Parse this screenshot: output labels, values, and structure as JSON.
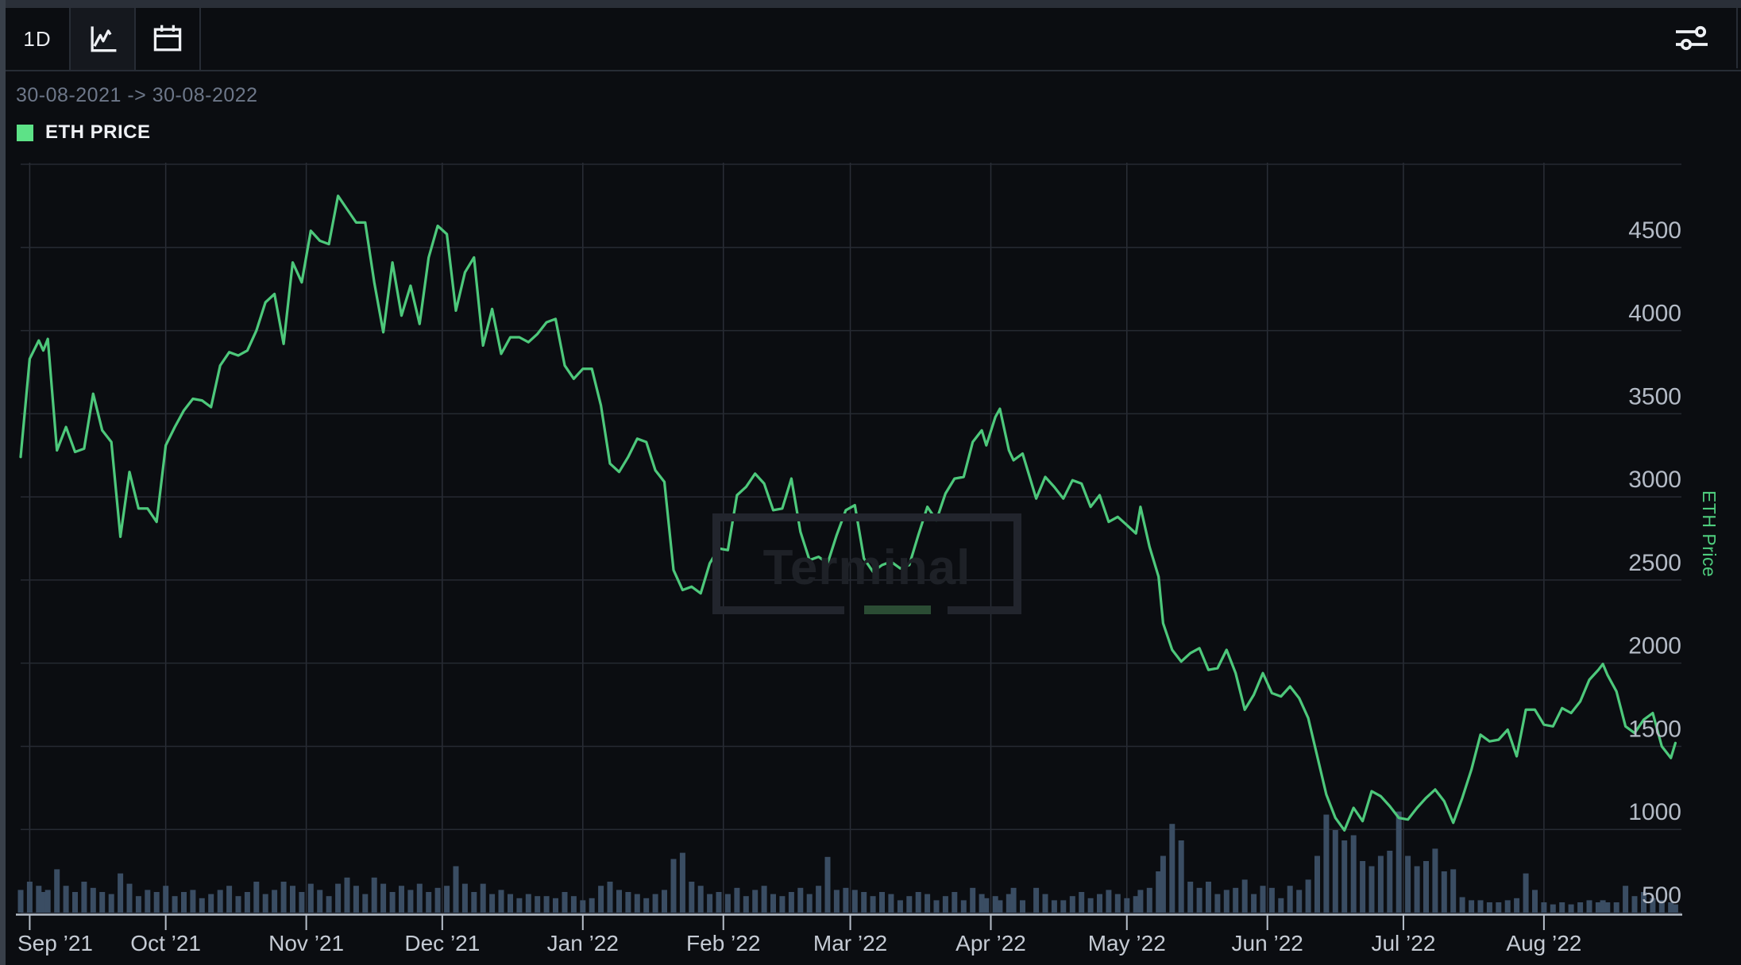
{
  "toolbar": {
    "timeframe_label": "1D",
    "chart_type_icon": "line-chart-icon",
    "calendar_icon": "calendar-icon",
    "filters_icon": "sliders-icon"
  },
  "header": {
    "date_range": "30-08-2021 -> 30-08-2022"
  },
  "legend": {
    "series_label": "ETH PRICE",
    "swatch_color": "#5de287"
  },
  "watermark": {
    "text": "Terminal"
  },
  "chart_data": {
    "type": "line",
    "title": "ETH PRICE",
    "ylabel": "ETH Price",
    "x_range": [
      "2021-08-30",
      "2022-08-30"
    ],
    "ylim": [
      500,
      5000
    ],
    "grid": true,
    "legend_position": "top-left",
    "y_gridlines": [
      500,
      1000,
      1500,
      2000,
      2500,
      3000,
      3500,
      4000,
      4500,
      5000
    ],
    "y_labelled_max": 4500,
    "x_ticks": [
      {
        "date": "2021-09-01",
        "label": "Sep ’21"
      },
      {
        "date": "2021-10-01",
        "label": "Oct ’21"
      },
      {
        "date": "2021-11-01",
        "label": "Nov ’21"
      },
      {
        "date": "2021-12-01",
        "label": "Dec ’21"
      },
      {
        "date": "2022-01-01",
        "label": "Jan ’22"
      },
      {
        "date": "2022-02-01",
        "label": "Feb ’22"
      },
      {
        "date": "2022-03-01",
        "label": "Mar ’22"
      },
      {
        "date": "2022-04-01",
        "label": "Apr ’22"
      },
      {
        "date": "2022-05-01",
        "label": "May ’22"
      },
      {
        "date": "2022-06-01",
        "label": "Jun ’22"
      },
      {
        "date": "2022-07-01",
        "label": "Jul ’22"
      },
      {
        "date": "2022-08-01",
        "label": "Aug ’22"
      }
    ],
    "style": {
      "line_color": "#4dc87b",
      "volume_color": "#3a4d63",
      "grid_color": "#262a32",
      "grid_color_vertical": "#2a2e37",
      "axis_color": "#b6bec9",
      "x_label_color": "#c5cbd4",
      "y_label_color": "#b4bbc6",
      "background": "#0b0d11"
    },
    "columns": [
      "date",
      "eth_price_usd",
      "volume_relative_0_100"
    ],
    "points": [
      [
        "2021-08-30",
        3240,
        22
      ],
      [
        "2021-09-01",
        3830,
        30
      ],
      [
        "2021-09-03",
        3940,
        26
      ],
      [
        "2021-09-04",
        3880,
        20
      ],
      [
        "2021-09-05",
        3950,
        22
      ],
      [
        "2021-09-07",
        3280,
        42
      ],
      [
        "2021-09-09",
        3420,
        26
      ],
      [
        "2021-09-11",
        3270,
        20
      ],
      [
        "2021-09-13",
        3290,
        30
      ],
      [
        "2021-09-15",
        3620,
        24
      ],
      [
        "2021-09-17",
        3400,
        20
      ],
      [
        "2021-09-19",
        3330,
        18
      ],
      [
        "2021-09-21",
        2760,
        38
      ],
      [
        "2021-09-23",
        3150,
        28
      ],
      [
        "2021-09-25",
        2930,
        16
      ],
      [
        "2021-09-27",
        2930,
        22
      ],
      [
        "2021-09-29",
        2850,
        20
      ],
      [
        "2021-10-01",
        3310,
        26
      ],
      [
        "2021-10-03",
        3420,
        16
      ],
      [
        "2021-10-05",
        3520,
        20
      ],
      [
        "2021-10-07",
        3590,
        22
      ],
      [
        "2021-10-09",
        3580,
        14
      ],
      [
        "2021-10-11",
        3540,
        18
      ],
      [
        "2021-10-13",
        3790,
        22
      ],
      [
        "2021-10-15",
        3870,
        26
      ],
      [
        "2021-10-17",
        3850,
        16
      ],
      [
        "2021-10-19",
        3880,
        20
      ],
      [
        "2021-10-21",
        4000,
        30
      ],
      [
        "2021-10-23",
        4170,
        18
      ],
      [
        "2021-10-25",
        4220,
        22
      ],
      [
        "2021-10-27",
        3920,
        30
      ],
      [
        "2021-10-29",
        4410,
        26
      ],
      [
        "2021-10-31",
        4290,
        20
      ],
      [
        "2021-11-02",
        4600,
        28
      ],
      [
        "2021-11-04",
        4540,
        22
      ],
      [
        "2021-11-06",
        4520,
        16
      ],
      [
        "2021-11-08",
        4810,
        28
      ],
      [
        "2021-11-10",
        4730,
        34
      ],
      [
        "2021-11-12",
        4650,
        26
      ],
      [
        "2021-11-14",
        4650,
        18
      ],
      [
        "2021-11-16",
        4290,
        34
      ],
      [
        "2021-11-18",
        3990,
        28
      ],
      [
        "2021-11-20",
        4410,
        20
      ],
      [
        "2021-11-22",
        4090,
        26
      ],
      [
        "2021-11-24",
        4270,
        22
      ],
      [
        "2021-11-26",
        4040,
        28
      ],
      [
        "2021-11-28",
        4440,
        20
      ],
      [
        "2021-11-30",
        4630,
        24
      ],
      [
        "2021-12-02",
        4580,
        26
      ],
      [
        "2021-12-04",
        4120,
        45
      ],
      [
        "2021-12-06",
        4350,
        28
      ],
      [
        "2021-12-08",
        4440,
        20
      ],
      [
        "2021-12-10",
        3910,
        28
      ],
      [
        "2021-12-12",
        4130,
        18
      ],
      [
        "2021-12-14",
        3860,
        22
      ],
      [
        "2021-12-16",
        3960,
        18
      ],
      [
        "2021-12-18",
        3960,
        14
      ],
      [
        "2021-12-20",
        3930,
        18
      ],
      [
        "2021-12-22",
        3980,
        16
      ],
      [
        "2021-12-24",
        4050,
        16
      ],
      [
        "2021-12-26",
        4070,
        14
      ],
      [
        "2021-12-28",
        3790,
        20
      ],
      [
        "2021-12-30",
        3710,
        16
      ],
      [
        "2022-01-01",
        3770,
        12
      ],
      [
        "2022-01-03",
        3770,
        14
      ],
      [
        "2022-01-05",
        3550,
        26
      ],
      [
        "2022-01-07",
        3200,
        30
      ],
      [
        "2022-01-09",
        3150,
        22
      ],
      [
        "2022-01-11",
        3240,
        20
      ],
      [
        "2022-01-13",
        3350,
        18
      ],
      [
        "2022-01-15",
        3330,
        14
      ],
      [
        "2022-01-17",
        3160,
        18
      ],
      [
        "2022-01-19",
        3090,
        22
      ],
      [
        "2022-01-21",
        2560,
        52
      ],
      [
        "2022-01-23",
        2440,
        58
      ],
      [
        "2022-01-25",
        2460,
        30
      ],
      [
        "2022-01-27",
        2420,
        26
      ],
      [
        "2022-01-29",
        2600,
        18
      ],
      [
        "2022-01-31",
        2690,
        20
      ],
      [
        "2022-02-02",
        2680,
        18
      ],
      [
        "2022-02-04",
        3010,
        24
      ],
      [
        "2022-02-06",
        3060,
        16
      ],
      [
        "2022-02-08",
        3140,
        22
      ],
      [
        "2022-02-10",
        3080,
        26
      ],
      [
        "2022-02-12",
        2920,
        18
      ],
      [
        "2022-02-14",
        2930,
        16
      ],
      [
        "2022-02-16",
        3110,
        20
      ],
      [
        "2022-02-18",
        2790,
        24
      ],
      [
        "2022-02-20",
        2620,
        18
      ],
      [
        "2022-02-22",
        2640,
        26
      ],
      [
        "2022-02-24",
        2600,
        54
      ],
      [
        "2022-02-26",
        2770,
        22
      ],
      [
        "2022-02-28",
        2920,
        24
      ],
      [
        "2022-03-02",
        2950,
        22
      ],
      [
        "2022-03-04",
        2630,
        20
      ],
      [
        "2022-03-06",
        2550,
        16
      ],
      [
        "2022-03-08",
        2590,
        20
      ],
      [
        "2022-03-10",
        2610,
        18
      ],
      [
        "2022-03-12",
        2570,
        12
      ],
      [
        "2022-03-14",
        2590,
        16
      ],
      [
        "2022-03-16",
        2770,
        20
      ],
      [
        "2022-03-18",
        2940,
        18
      ],
      [
        "2022-03-20",
        2860,
        12
      ],
      [
        "2022-03-22",
        3020,
        16
      ],
      [
        "2022-03-24",
        3110,
        20
      ],
      [
        "2022-03-26",
        3120,
        12
      ],
      [
        "2022-03-28",
        3330,
        24
      ],
      [
        "2022-03-30",
        3400,
        18
      ],
      [
        "2022-03-31",
        3310,
        14
      ],
      [
        "2022-04-02",
        3480,
        16
      ],
      [
        "2022-04-03",
        3530,
        12
      ],
      [
        "2022-04-05",
        3280,
        18
      ],
      [
        "2022-04-06",
        3220,
        24
      ],
      [
        "2022-04-08",
        3260,
        12
      ],
      [
        "2022-04-11",
        2990,
        24
      ],
      [
        "2022-04-13",
        3120,
        18
      ],
      [
        "2022-04-15",
        3060,
        12
      ],
      [
        "2022-04-17",
        2990,
        12
      ],
      [
        "2022-04-19",
        3100,
        16
      ],
      [
        "2022-04-21",
        3080,
        20
      ],
      [
        "2022-04-23",
        2940,
        14
      ],
      [
        "2022-04-25",
        3010,
        18
      ],
      [
        "2022-04-27",
        2850,
        22
      ],
      [
        "2022-04-29",
        2880,
        18
      ],
      [
        "2022-05-01",
        2830,
        14
      ],
      [
        "2022-05-03",
        2780,
        16
      ],
      [
        "2022-05-04",
        2940,
        22
      ],
      [
        "2022-05-06",
        2700,
        24
      ],
      [
        "2022-05-08",
        2520,
        40
      ],
      [
        "2022-05-09",
        2240,
        55
      ],
      [
        "2022-05-11",
        2080,
        86
      ],
      [
        "2022-05-13",
        2010,
        70
      ],
      [
        "2022-05-15",
        2060,
        30
      ],
      [
        "2022-05-17",
        2090,
        24
      ],
      [
        "2022-05-19",
        1960,
        30
      ],
      [
        "2022-05-21",
        1970,
        18
      ],
      [
        "2022-05-23",
        2080,
        22
      ],
      [
        "2022-05-25",
        1940,
        24
      ],
      [
        "2022-05-27",
        1720,
        32
      ],
      [
        "2022-05-29",
        1810,
        18
      ],
      [
        "2022-05-31",
        1940,
        26
      ],
      [
        "2022-06-02",
        1820,
        24
      ],
      [
        "2022-06-04",
        1800,
        14
      ],
      [
        "2022-06-06",
        1860,
        26
      ],
      [
        "2022-06-08",
        1790,
        22
      ],
      [
        "2022-06-10",
        1670,
        32
      ],
      [
        "2022-06-12",
        1440,
        55
      ],
      [
        "2022-06-14",
        1210,
        95
      ],
      [
        "2022-06-16",
        1070,
        80
      ],
      [
        "2022-06-18",
        995,
        70
      ],
      [
        "2022-06-20",
        1130,
        75
      ],
      [
        "2022-06-22",
        1050,
        50
      ],
      [
        "2022-06-24",
        1230,
        45
      ],
      [
        "2022-06-26",
        1200,
        55
      ],
      [
        "2022-06-28",
        1140,
        60
      ],
      [
        "2022-06-30",
        1070,
        98
      ],
      [
        "2022-07-02",
        1060,
        55
      ],
      [
        "2022-07-04",
        1130,
        45
      ],
      [
        "2022-07-06",
        1190,
        50
      ],
      [
        "2022-07-08",
        1240,
        62
      ],
      [
        "2022-07-10",
        1170,
        40
      ],
      [
        "2022-07-12",
        1040,
        42
      ],
      [
        "2022-07-14",
        1190,
        15
      ],
      [
        "2022-07-16",
        1360,
        12
      ],
      [
        "2022-07-18",
        1570,
        12
      ],
      [
        "2022-07-20",
        1530,
        10
      ],
      [
        "2022-07-22",
        1540,
        10
      ],
      [
        "2022-07-24",
        1600,
        12
      ],
      [
        "2022-07-26",
        1440,
        14
      ],
      [
        "2022-07-28",
        1720,
        38
      ],
      [
        "2022-07-30",
        1720,
        22
      ],
      [
        "2022-08-01",
        1630,
        10
      ],
      [
        "2022-08-03",
        1620,
        8
      ],
      [
        "2022-08-05",
        1730,
        10
      ],
      [
        "2022-08-07",
        1700,
        8
      ],
      [
        "2022-08-09",
        1770,
        10
      ],
      [
        "2022-08-11",
        1900,
        12
      ],
      [
        "2022-08-13",
        1960,
        10
      ],
      [
        "2022-08-14",
        1995,
        12
      ],
      [
        "2022-08-15",
        1930,
        10
      ],
      [
        "2022-08-17",
        1830,
        10
      ],
      [
        "2022-08-19",
        1620,
        26
      ],
      [
        "2022-08-21",
        1580,
        16
      ],
      [
        "2022-08-23",
        1660,
        20
      ],
      [
        "2022-08-25",
        1700,
        14
      ],
      [
        "2022-08-27",
        1500,
        12
      ],
      [
        "2022-08-29",
        1430,
        10
      ],
      [
        "2022-08-30",
        1520,
        8
      ]
    ]
  }
}
